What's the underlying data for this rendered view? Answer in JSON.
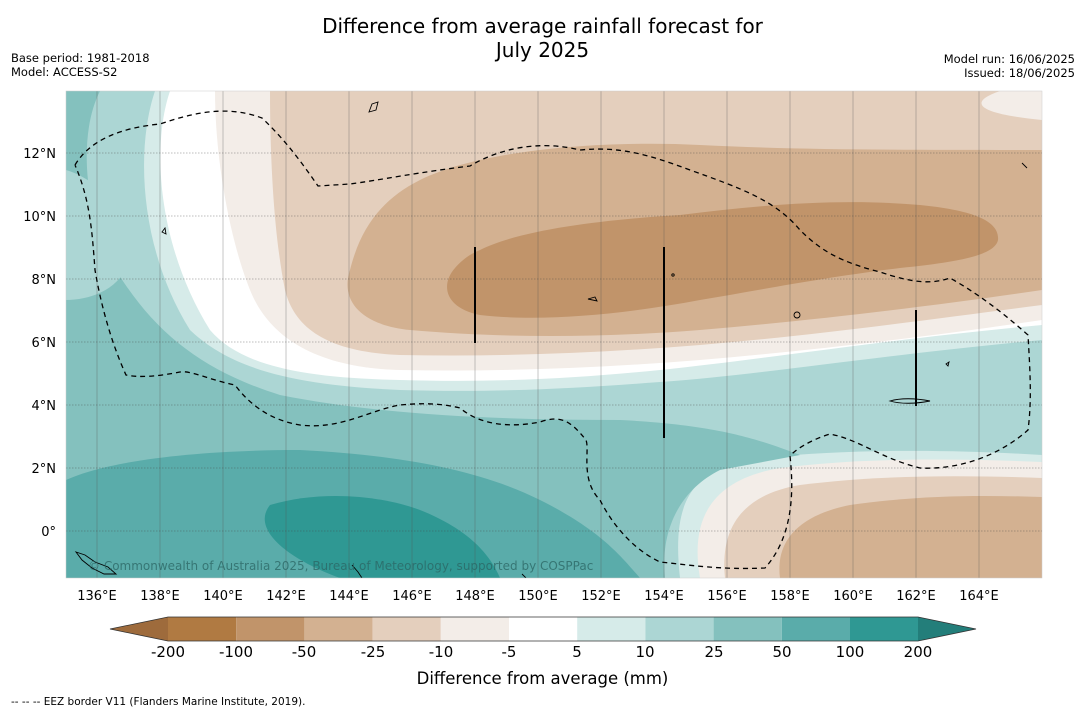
{
  "title": {
    "line1": "Difference from average rainfall forecast for",
    "line2": "July 2025"
  },
  "meta_left": {
    "base_period": "Base period: 1981-2018",
    "model": "Model: ACCESS-S2"
  },
  "meta_right": {
    "model_run": "Model run: 16/06/2025",
    "issued": "Issued: 18/06/2025"
  },
  "map": {
    "lon_labels": [
      "136°E",
      "138°E",
      "140°E",
      "142°E",
      "144°E",
      "146°E",
      "148°E",
      "150°E",
      "152°E",
      "154°E",
      "156°E",
      "158°E",
      "160°E",
      "162°E",
      "164°E"
    ],
    "lat_labels": [
      "12°N",
      "10°N",
      "8°N",
      "6°N",
      "4°N",
      "2°N",
      "0°"
    ],
    "copyright": "© Commonwealth of Australia 2025, Bureau of Meteorology, supported by COSPPac"
  },
  "colorbar": {
    "colors": {
      "lt_-200": "#9e6b3c",
      "-200_-100": "#b07a42",
      "-100_-50": "#c1946a",
      "-50_-25": "#d3b191",
      "-25_-10": "#e4cfbd",
      "-10_-5": "#f3ede8",
      "-5_5": "#ffffff",
      "5_10": "#d6ebe9",
      "10_25": "#acd6d4",
      "25_50": "#84c1be",
      "50_100": "#5aacaa",
      "100_200": "#2f9893",
      "gt_200": "#237e7a"
    },
    "ticks": [
      "-200",
      "-100",
      "-50",
      "-25",
      "-10",
      "-5",
      "5",
      "10",
      "25",
      "50",
      "100",
      "200"
    ],
    "title": "Difference from average (mm)"
  },
  "footnote": "-- -- -- EEZ border V11 (Flanders Marine Institute, 2019)."
}
